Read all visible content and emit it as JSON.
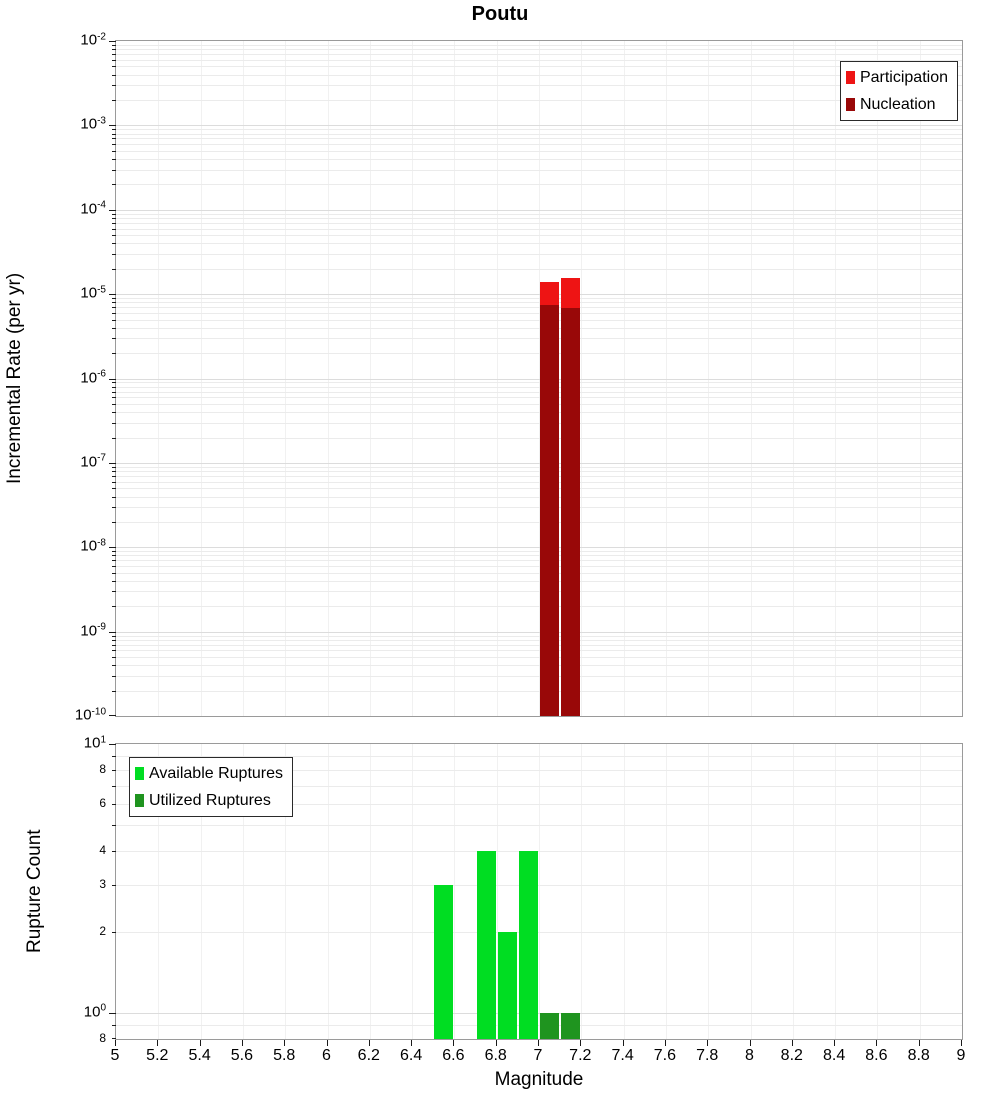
{
  "title": "Poutu",
  "x_axis": {
    "label": "Magnitude",
    "min": 5,
    "max": 9,
    "ticks": [
      {
        "value": 5,
        "label": "5"
      },
      {
        "value": 5.2,
        "label": "5.2"
      },
      {
        "value": 5.4,
        "label": "5.4"
      },
      {
        "value": 5.6,
        "label": "5.6"
      },
      {
        "value": 5.8,
        "label": "5.8"
      },
      {
        "value": 6,
        "label": "6"
      },
      {
        "value": 6.2,
        "label": "6.2"
      },
      {
        "value": 6.4,
        "label": "6.4"
      },
      {
        "value": 6.6,
        "label": "6.6"
      },
      {
        "value": 6.8,
        "label": "6.8"
      },
      {
        "value": 7,
        "label": "7"
      },
      {
        "value": 7.2,
        "label": "7.2"
      },
      {
        "value": 7.4,
        "label": "7.4"
      },
      {
        "value": 7.6,
        "label": "7.6"
      },
      {
        "value": 7.8,
        "label": "7.8"
      },
      {
        "value": 8,
        "label": "8"
      },
      {
        "value": 8.2,
        "label": "8.2"
      },
      {
        "value": 8.4,
        "label": "8.4"
      },
      {
        "value": 8.6,
        "label": "8.6"
      },
      {
        "value": 8.8,
        "label": "8.8"
      },
      {
        "value": 9,
        "label": "9"
      }
    ]
  },
  "chart_data": [
    {
      "type": "bar",
      "title": "Poutu",
      "ylabel": "Incremental Rate (per yr)",
      "xlabel": "Magnitude",
      "yscale": "log",
      "ylim": [
        1e-10,
        0.01
      ],
      "xlim": [
        5,
        9
      ],
      "bar_width": 0.09,
      "grid": true,
      "legend": {
        "position": "top-right"
      },
      "y_ticks": [
        {
          "value": 0.01,
          "exp": -2
        },
        {
          "value": 0.001,
          "exp": -3
        },
        {
          "value": 0.0001,
          "exp": -4
        },
        {
          "value": 1e-05,
          "exp": -5
        },
        {
          "value": 1e-06,
          "exp": -6
        },
        {
          "value": 1e-07,
          "exp": -7
        },
        {
          "value": 1e-08,
          "exp": -8
        },
        {
          "value": 1e-09,
          "exp": -9
        },
        {
          "value": 1e-10,
          "exp": -10
        }
      ],
      "series": [
        {
          "name": "Participation",
          "color": "#ee1414",
          "bins": [
            {
              "x": 7.05,
              "value": 1.4e-05
            },
            {
              "x": 7.15,
              "value": 1.55e-05
            }
          ]
        },
        {
          "name": "Nucleation",
          "color": "#990808",
          "bins": [
            {
              "x": 7.05,
              "value": 7.5e-06
            },
            {
              "x": 7.15,
              "value": 6.8e-06
            }
          ]
        }
      ]
    },
    {
      "type": "bar",
      "ylabel": "Rupture Count",
      "xlabel": "Magnitude",
      "yscale": "log",
      "ylim": [
        0.8,
        10
      ],
      "xlim": [
        5,
        9
      ],
      "bar_width": 0.09,
      "grid": true,
      "legend": {
        "position": "top-left"
      },
      "y_ticks": [
        {
          "value": 10,
          "exp": 1
        },
        {
          "value": 8,
          "text": "8",
          "minor": true
        },
        {
          "value": 6,
          "text": "6",
          "minor": true
        },
        {
          "value": 4,
          "text": "4",
          "minor": true
        },
        {
          "value": 3,
          "text": "3",
          "minor": true
        },
        {
          "value": 2,
          "text": "2",
          "minor": true
        },
        {
          "value": 1,
          "exp": 0
        },
        {
          "value": 0.8,
          "text": "8",
          "minor": true
        }
      ],
      "series": [
        {
          "name": "Available Ruptures",
          "color": "#00dd22",
          "bins": [
            {
              "x": 6.55,
              "value": 3
            },
            {
              "x": 6.75,
              "value": 4
            },
            {
              "x": 6.85,
              "value": 2
            },
            {
              "x": 6.95,
              "value": 4
            }
          ]
        },
        {
          "name": "Utilized Ruptures",
          "color": "#1f941f",
          "bins": [
            {
              "x": 7.05,
              "value": 1
            },
            {
              "x": 7.15,
              "value": 1
            }
          ]
        }
      ]
    }
  ]
}
